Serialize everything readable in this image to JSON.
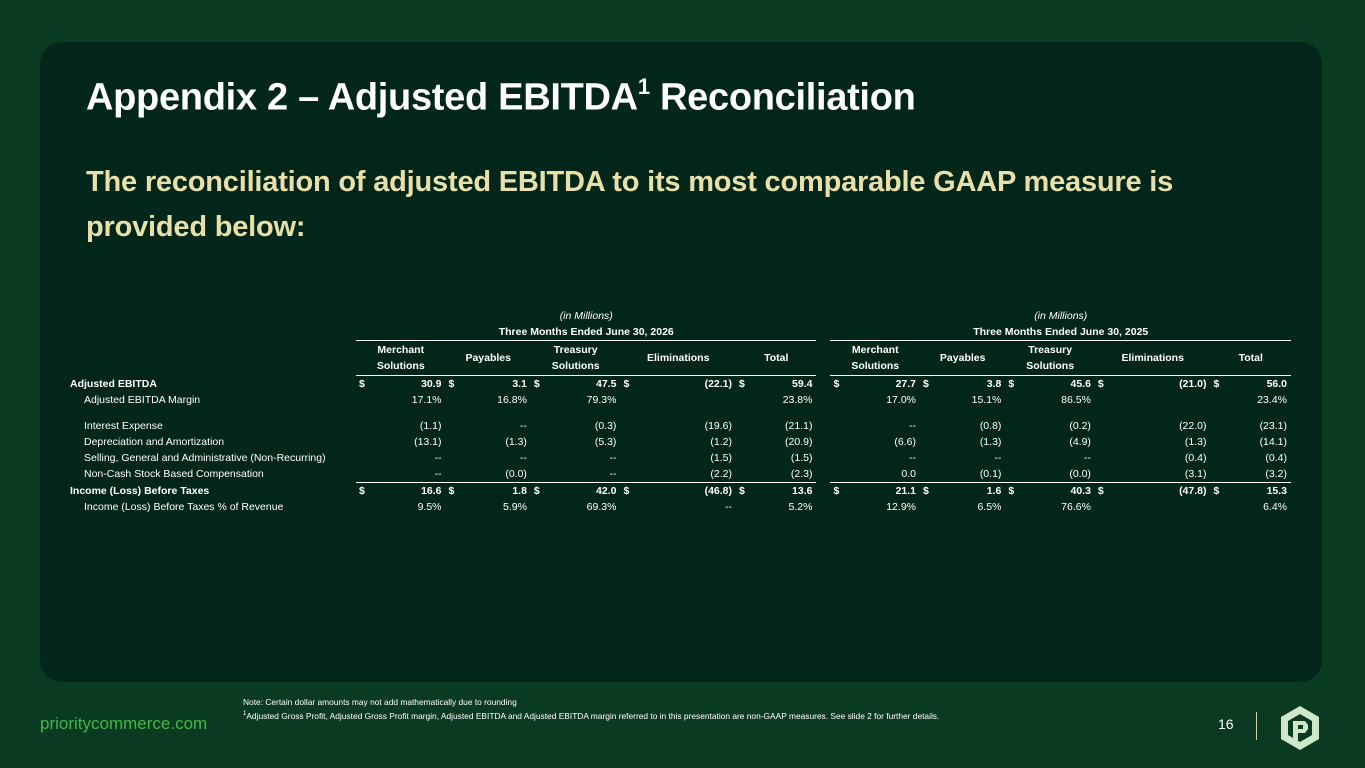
{
  "title_main": "Appendix 2 – Adjusted EBITDA",
  "title_sup": "1",
  "title_tail": " Reconciliation",
  "subtitle": "The reconciliation of adjusted EBITDA to its most comparable GAAP measure is provided below:",
  "table": {
    "units": "(in Millions)",
    "period_2026": "Three Months Ended June 30, 2026",
    "period_2025": "Three Months Ended June 30, 2025",
    "col_merchant_1": "Merchant",
    "col_merchant_2": "Solutions",
    "col_payables": "Payables",
    "col_treasury_1": "Treasury",
    "col_treasury_2": "Solutions",
    "col_elim": "Eliminations",
    "col_total": "Total",
    "dollar": "$",
    "rows": [
      {
        "label": "Adjusted EBITDA",
        "v": [
          "30.9",
          "3.1",
          "47.5",
          "(22.1)",
          "59.4",
          "27.7",
          "3.8",
          "45.6",
          "(21.0)",
          "56.0"
        ]
      },
      {
        "label": "Adjusted EBITDA Margin",
        "v": [
          "17.1%",
          "16.8%",
          "79.3%",
          "",
          "23.8%",
          "17.0%",
          "15.1%",
          "86.5%",
          "",
          "23.4%"
        ]
      },
      {
        "label": "Interest Expense",
        "v": [
          "(1.1)",
          "--",
          "(0.3)",
          "(19.6)",
          "(21.1)",
          "--",
          "(0.8)",
          "(0.2)",
          "(22.0)",
          "(23.1)"
        ]
      },
      {
        "label": "Depreciation and Amortization",
        "v": [
          "(13.1)",
          "(1.3)",
          "(5.3)",
          "(1.2)",
          "(20.9)",
          "(6.6)",
          "(1.3)",
          "(4.9)",
          "(1.3)",
          "(14.1)"
        ]
      },
      {
        "label": "Selling, General and Administrative (Non-Recurring)",
        "v": [
          "--",
          "--",
          "--",
          "(1.5)",
          "(1.5)",
          "--",
          "--",
          "--",
          "(0.4)",
          "(0.4)"
        ]
      },
      {
        "label": "Non-Cash Stock Based Compensation",
        "v": [
          "--",
          "(0.0)",
          "--",
          "(2.2)",
          "(2.3)",
          "0.0",
          "(0.1)",
          "(0.0)",
          "(3.1)",
          "(3.2)"
        ]
      },
      {
        "label": "Income (Loss) Before Taxes",
        "v": [
          "16.6",
          "1.8",
          "42.0",
          "(46.8)",
          "13.6",
          "21.1",
          "1.6",
          "40.3",
          "(47.8)",
          "15.3"
        ]
      },
      {
        "label": "Income (Loss) Before Taxes % of Revenue",
        "v": [
          "9.5%",
          "5.9%",
          "69.3%",
          "--",
          "5.2%",
          "12.9%",
          "6.5%",
          "76.6%",
          "",
          "6.4%"
        ]
      }
    ]
  },
  "note_1": "Note: Certain dollar amounts may not add mathematically due to rounding",
  "note_2_sup": "1",
  "note_2": "Adjusted Gross Profit, Adjusted Gross Profit margin, Adjusted EBITDA and Adjusted EBITDA margin referred to in this presentation are non-GAAP measures. See slide 2 for further details.",
  "brand": "prioritycommerce.com",
  "page_number": "16",
  "colors": {
    "background": "#0a3a22",
    "panel": "#03261a",
    "subtitle": "#e8e0a8",
    "brand": "#3dbb4a"
  },
  "logo_icon": "priority-logo-icon"
}
